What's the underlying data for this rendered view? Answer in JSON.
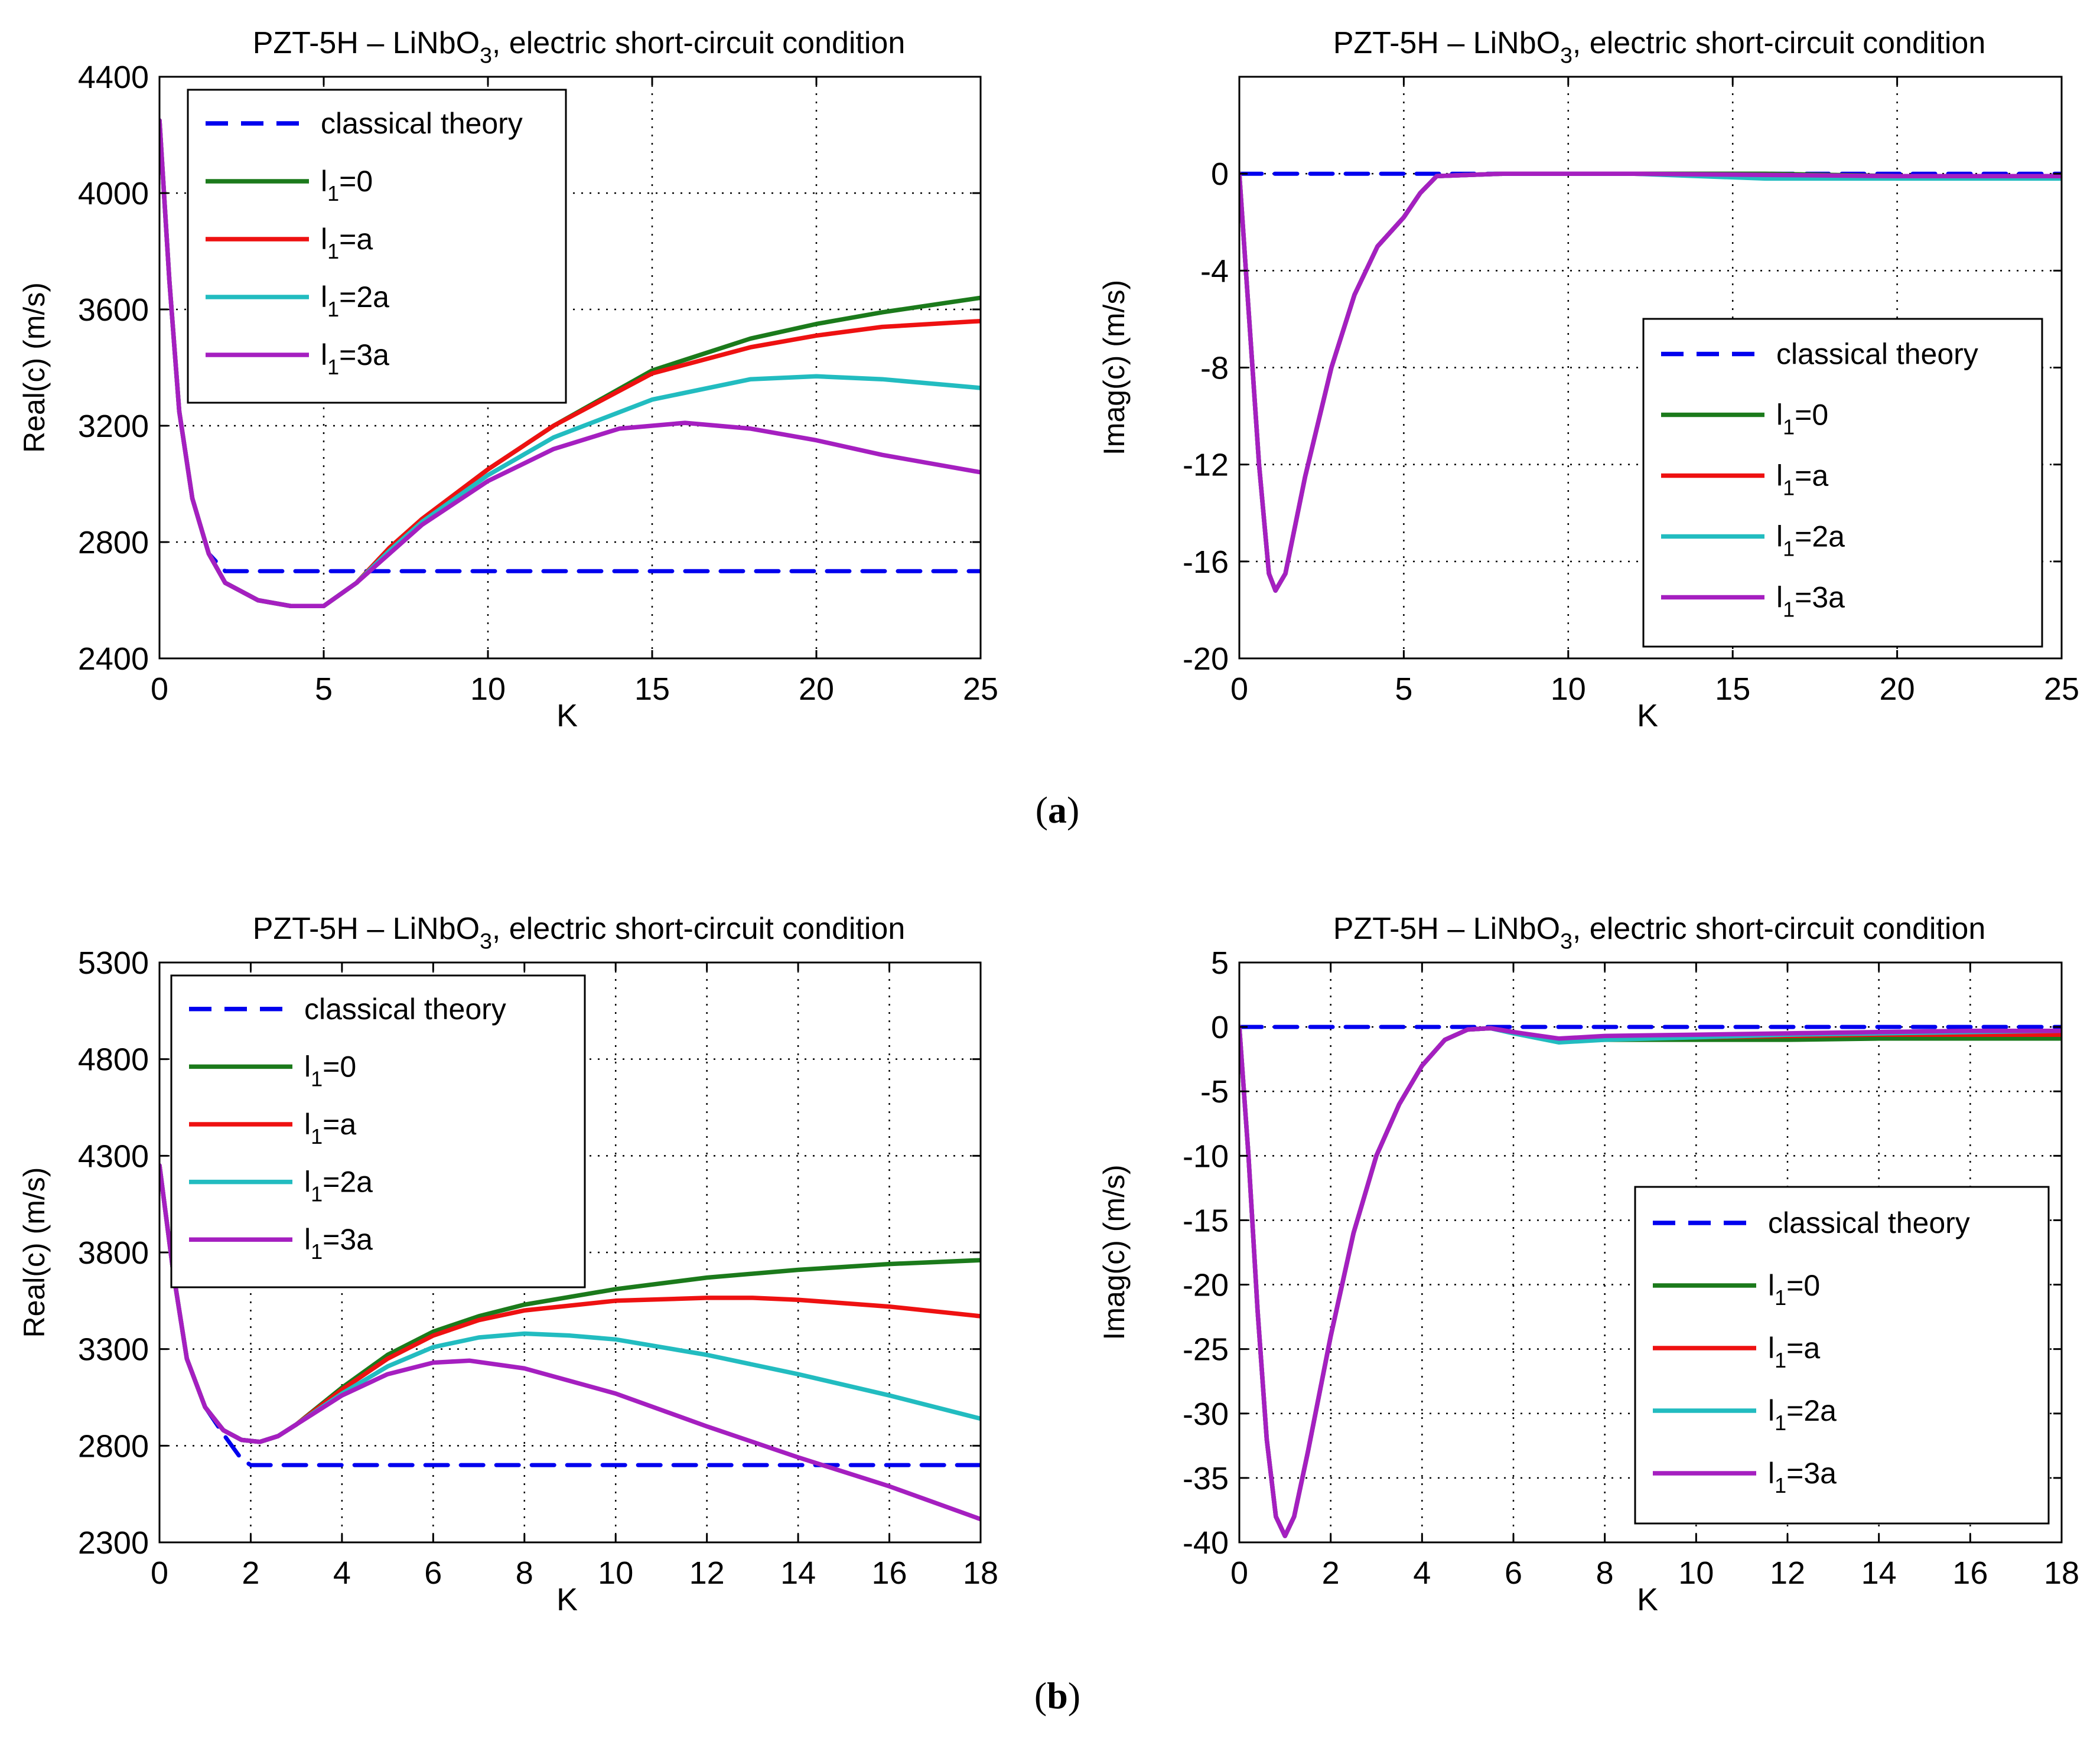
{
  "figure": {
    "panel_labels": [
      {
        "open": "(",
        "letter": "a",
        "close": ")"
      },
      {
        "open": "(",
        "letter": "b",
        "close": ")"
      }
    ],
    "colors": {
      "classical": "#0000ee",
      "l0": "#1b7a1b",
      "la": "#ee1111",
      "l2a": "#22bcc0",
      "l3a": "#a51fc0",
      "grid": "#000000"
    }
  },
  "chart_data": [
    {
      "type": "line",
      "title": {
        "main": "PZT-5H – LiNbO",
        "sub": "3",
        "rest": ", electric short-circuit condition"
      },
      "xlabel": "K",
      "ylabel": "Real(c) (m/s)",
      "xlim": [
        0,
        25
      ],
      "ylim": [
        2400,
        4400
      ],
      "xticks": [
        0,
        5,
        10,
        15,
        20,
        25
      ],
      "yticks": [
        2400,
        2800,
        3200,
        3600,
        4000,
        4400
      ],
      "grid": true,
      "legend_position": "top-left",
      "series": [
        {
          "name": "classical theory",
          "style": "dashed",
          "color_key": "classical",
          "x": [
            0,
            0.3,
            0.6,
            1.0,
            1.5,
            2.0,
            3,
            5,
            10,
            15,
            20,
            25
          ],
          "y": [
            4250,
            3700,
            3250,
            2950,
            2760,
            2700,
            2700,
            2700,
            2700,
            2700,
            2700,
            2700
          ]
        },
        {
          "name": "l1=0",
          "label": {
            "main": "l",
            "sub": "1",
            "rest": "=0"
          },
          "style": "solid",
          "color_key": "l0",
          "x": [
            0,
            0.3,
            0.6,
            1.0,
            1.5,
            2,
            3,
            4,
            5,
            6,
            7,
            8,
            10,
            12,
            15,
            18,
            20,
            22,
            25
          ],
          "y": [
            4250,
            3700,
            3250,
            2950,
            2760,
            2660,
            2600,
            2580,
            2580,
            2660,
            2780,
            2880,
            3050,
            3200,
            3390,
            3500,
            3550,
            3590,
            3640
          ]
        },
        {
          "name": "l1=a",
          "label": {
            "main": "l",
            "sub": "1",
            "rest": "=a"
          },
          "style": "solid",
          "color_key": "la",
          "x": [
            0,
            0.3,
            0.6,
            1.0,
            1.5,
            2,
            3,
            4,
            5,
            6,
            7,
            8,
            10,
            12,
            15,
            18,
            20,
            22,
            25
          ],
          "y": [
            4250,
            3700,
            3250,
            2950,
            2760,
            2660,
            2600,
            2580,
            2580,
            2660,
            2780,
            2880,
            3050,
            3200,
            3380,
            3470,
            3510,
            3540,
            3560
          ]
        },
        {
          "name": "l1=2a",
          "label": {
            "main": "l",
            "sub": "1",
            "rest": "=2a"
          },
          "style": "solid",
          "color_key": "l2a",
          "x": [
            0,
            0.3,
            0.6,
            1.0,
            1.5,
            2,
            3,
            4,
            5,
            6,
            7,
            8,
            10,
            12,
            15,
            18,
            20,
            22,
            25
          ],
          "y": [
            4250,
            3700,
            3250,
            2950,
            2760,
            2660,
            2600,
            2580,
            2580,
            2660,
            2770,
            2870,
            3030,
            3160,
            3290,
            3360,
            3370,
            3360,
            3330
          ]
        },
        {
          "name": "l1=3a",
          "label": {
            "main": "l",
            "sub": "1",
            "rest": "=3a"
          },
          "style": "solid",
          "color_key": "l3a",
          "x": [
            0,
            0.3,
            0.6,
            1.0,
            1.5,
            2,
            3,
            4,
            5,
            6,
            7,
            8,
            10,
            12,
            14,
            16,
            18,
            20,
            22,
            25
          ],
          "y": [
            4250,
            3700,
            3250,
            2950,
            2760,
            2660,
            2600,
            2580,
            2580,
            2660,
            2760,
            2860,
            3010,
            3120,
            3190,
            3210,
            3190,
            3150,
            3100,
            3040
          ]
        }
      ]
    },
    {
      "type": "line",
      "title": {
        "main": "PZT-5H – LiNbO",
        "sub": "3",
        "rest": ", electric short-circuit condition"
      },
      "xlabel": "K",
      "ylabel": "Imag(c) (m/s)",
      "xlim": [
        0,
        25
      ],
      "ylim": [
        -20,
        4
      ],
      "xticks": [
        0,
        5,
        10,
        15,
        20,
        25
      ],
      "yticks": [
        -20,
        -16,
        -12,
        -8,
        -4,
        0
      ],
      "grid": true,
      "legend_position": "bottom-right",
      "series": [
        {
          "name": "classical theory",
          "style": "dashed",
          "color_key": "classical",
          "x": [
            0,
            25
          ],
          "y": [
            0,
            0
          ]
        },
        {
          "name": "l1=0",
          "label": {
            "main": "l",
            "sub": "1",
            "rest": "=0"
          },
          "style": "solid",
          "color_key": "l0",
          "x": [
            0,
            0.3,
            0.6,
            0.9,
            1.1,
            1.4,
            2.0,
            2.8,
            3.5,
            4.2,
            5.0,
            5.5,
            6.0,
            8,
            12,
            16,
            20,
            25
          ],
          "y": [
            0,
            -6,
            -12,
            -16.5,
            -17.2,
            -16.5,
            -12.5,
            -8,
            -5,
            -3,
            -1.8,
            -0.8,
            -0.1,
            0,
            0,
            0,
            -0.1,
            -0.1
          ]
        },
        {
          "name": "l1=a",
          "label": {
            "main": "l",
            "sub": "1",
            "rest": "=a"
          },
          "style": "solid",
          "color_key": "la",
          "x": [
            0,
            0.3,
            0.6,
            0.9,
            1.1,
            1.4,
            2.0,
            2.8,
            3.5,
            4.2,
            5.0,
            5.5,
            6.0,
            8,
            12,
            16,
            20,
            25
          ],
          "y": [
            0,
            -6,
            -12,
            -16.5,
            -17.2,
            -16.5,
            -12.5,
            -8,
            -5,
            -3,
            -1.8,
            -0.8,
            -0.1,
            0,
            0,
            -0.1,
            -0.1,
            -0.15
          ]
        },
        {
          "name": "l1=2a",
          "label": {
            "main": "l",
            "sub": "1",
            "rest": "=2a"
          },
          "style": "solid",
          "color_key": "l2a",
          "x": [
            0,
            0.3,
            0.6,
            0.9,
            1.1,
            1.4,
            2.0,
            2.8,
            3.5,
            4.2,
            5.0,
            5.5,
            6.0,
            8,
            12,
            16,
            20,
            25
          ],
          "y": [
            0,
            -6,
            -12,
            -16.5,
            -17.2,
            -16.5,
            -12.5,
            -8,
            -5,
            -3,
            -1.8,
            -0.8,
            -0.1,
            0,
            0,
            -0.2,
            -0.2,
            -0.2
          ]
        },
        {
          "name": "l1=3a",
          "label": {
            "main": "l",
            "sub": "1",
            "rest": "=3a"
          },
          "style": "solid",
          "color_key": "l3a",
          "x": [
            0,
            0.3,
            0.6,
            0.9,
            1.1,
            1.4,
            2.0,
            2.8,
            3.5,
            4.2,
            5.0,
            5.5,
            6.0,
            8,
            12,
            16,
            20,
            25
          ],
          "y": [
            0,
            -6,
            -12,
            -16.5,
            -17.2,
            -16.5,
            -12.5,
            -8,
            -5,
            -3,
            -1.8,
            -0.8,
            -0.1,
            0,
            0,
            -0.05,
            -0.1,
            -0.1
          ]
        }
      ]
    },
    {
      "type": "line",
      "title": {
        "main": "PZT-5H – LiNbO",
        "sub": "3",
        "rest": ", electric short-circuit condition"
      },
      "xlabel": "K",
      "ylabel": "Real(c) (m/s)",
      "xlim": [
        0,
        18
      ],
      "ylim": [
        2300,
        5300
      ],
      "xticks": [
        0,
        2,
        4,
        6,
        8,
        10,
        12,
        14,
        16,
        18
      ],
      "yticks": [
        2300,
        2800,
        3300,
        3800,
        4300,
        4800,
        5300
      ],
      "grid": true,
      "legend_position": "top-left",
      "series": [
        {
          "name": "classical theory",
          "style": "dashed",
          "color_key": "classical",
          "x": [
            0,
            0.3,
            0.6,
            1.0,
            1.4,
            1.8,
            2.0,
            4,
            8,
            12,
            18
          ],
          "y": [
            4250,
            3700,
            3250,
            3000,
            2860,
            2730,
            2700,
            2700,
            2700,
            2700,
            2700
          ]
        },
        {
          "name": "l1=0",
          "label": {
            "main": "l",
            "sub": "1",
            "rest": "=0"
          },
          "style": "solid",
          "color_key": "l0",
          "x": [
            0,
            0.3,
            0.6,
            1.0,
            1.4,
            1.8,
            2.2,
            2.6,
            3,
            4,
            5,
            6,
            7,
            8,
            10,
            12,
            14,
            16,
            18
          ],
          "y": [
            4250,
            3700,
            3250,
            3000,
            2880,
            2830,
            2820,
            2850,
            2910,
            3100,
            3270,
            3390,
            3470,
            3530,
            3610,
            3670,
            3710,
            3740,
            3760
          ]
        },
        {
          "name": "l1=a",
          "label": {
            "main": "l",
            "sub": "1",
            "rest": "=a"
          },
          "style": "solid",
          "color_key": "la",
          "x": [
            0,
            0.3,
            0.6,
            1.0,
            1.4,
            1.8,
            2.2,
            2.6,
            3,
            4,
            5,
            6,
            7,
            8,
            10,
            12,
            13,
            14,
            16,
            18
          ],
          "y": [
            4250,
            3700,
            3250,
            3000,
            2880,
            2830,
            2820,
            2850,
            2910,
            3090,
            3250,
            3370,
            3450,
            3500,
            3550,
            3565,
            3565,
            3555,
            3520,
            3470
          ]
        },
        {
          "name": "l1=2a",
          "label": {
            "main": "l",
            "sub": "1",
            "rest": "=2a"
          },
          "style": "solid",
          "color_key": "l2a",
          "x": [
            0,
            0.3,
            0.6,
            1.0,
            1.4,
            1.8,
            2.2,
            2.6,
            3,
            4,
            5,
            6,
            7,
            8,
            9,
            10,
            12,
            14,
            16,
            18
          ],
          "y": [
            4250,
            3700,
            3250,
            3000,
            2880,
            2830,
            2820,
            2850,
            2910,
            3070,
            3210,
            3310,
            3360,
            3380,
            3370,
            3350,
            3270,
            3170,
            3060,
            2940
          ]
        },
        {
          "name": "l1=3a",
          "label": {
            "main": "l",
            "sub": "1",
            "rest": "=3a"
          },
          "style": "solid",
          "color_key": "l3a",
          "x": [
            0,
            0.3,
            0.6,
            1.0,
            1.4,
            1.8,
            2.2,
            2.6,
            3,
            4,
            5,
            6,
            6.8,
            8,
            10,
            12,
            14,
            16,
            18
          ],
          "y": [
            4250,
            3700,
            3250,
            3000,
            2880,
            2830,
            2820,
            2850,
            2910,
            3060,
            3170,
            3230,
            3240,
            3200,
            3070,
            2900,
            2740,
            2590,
            2420
          ]
        }
      ]
    },
    {
      "type": "line",
      "title": {
        "main": "PZT-5H – LiNbO",
        "sub": "3",
        "rest": ", electric short-circuit condition"
      },
      "xlabel": "K",
      "ylabel": "Imag(c) (m/s)",
      "xlim": [
        0,
        18
      ],
      "ylim": [
        -40,
        5
      ],
      "xticks": [
        0,
        2,
        4,
        6,
        8,
        10,
        12,
        14,
        16,
        18
      ],
      "yticks": [
        -40,
        -35,
        -30,
        -25,
        -20,
        -15,
        -10,
        -5,
        0,
        5
      ],
      "grid": true,
      "legend_position": "bottom-right",
      "series": [
        {
          "name": "classical theory",
          "style": "dashed",
          "color_key": "classical",
          "x": [
            0,
            18
          ],
          "y": [
            0,
            0
          ]
        },
        {
          "name": "l1=0",
          "label": {
            "main": "l",
            "sub": "1",
            "rest": "=0"
          },
          "style": "solid",
          "color_key": "l0",
          "x": [
            0,
            0.2,
            0.4,
            0.6,
            0.8,
            1.0,
            1.2,
            1.5,
            2.0,
            2.5,
            3.0,
            3.5,
            4.0,
            4.5,
            5.0,
            5.5,
            6.0,
            7.0,
            8,
            10,
            12,
            14,
            16,
            18
          ],
          "y": [
            0,
            -10,
            -22,
            -32,
            -38,
            -39.5,
            -38,
            -33,
            -24,
            -16,
            -10,
            -6,
            -3,
            -1,
            -0.2,
            -0.1,
            -0.4,
            -1.0,
            -1.0,
            -1.0,
            -1.0,
            -0.9,
            -0.9,
            -0.9
          ]
        },
        {
          "name": "l1=a",
          "label": {
            "main": "l",
            "sub": "1",
            "rest": "=a"
          },
          "style": "solid",
          "color_key": "la",
          "x": [
            0,
            0.2,
            0.4,
            0.6,
            0.8,
            1.0,
            1.2,
            1.5,
            2.0,
            2.5,
            3.0,
            3.5,
            4.0,
            4.5,
            5.0,
            5.5,
            6.0,
            7.0,
            8,
            10,
            12,
            14,
            16,
            18
          ],
          "y": [
            0,
            -10,
            -22,
            -32,
            -38,
            -39.5,
            -38,
            -33,
            -24,
            -16,
            -10,
            -6,
            -3,
            -1,
            -0.2,
            -0.1,
            -0.4,
            -1.0,
            -0.9,
            -0.8,
            -0.7,
            -0.6,
            -0.6,
            -0.6
          ]
        },
        {
          "name": "l1=2a",
          "label": {
            "main": "l",
            "sub": "1",
            "rest": "=2a"
          },
          "style": "solid",
          "color_key": "l2a",
          "x": [
            0,
            0.2,
            0.4,
            0.6,
            0.8,
            1.0,
            1.2,
            1.5,
            2.0,
            2.5,
            3.0,
            3.5,
            4.0,
            4.5,
            5.0,
            5.5,
            6.0,
            7.0,
            8,
            10,
            12,
            14,
            16,
            18
          ],
          "y": [
            0,
            -10,
            -22,
            -32,
            -38,
            -39.5,
            -38,
            -33,
            -24,
            -16,
            -10,
            -6,
            -3,
            -1,
            -0.2,
            -0.1,
            -0.5,
            -1.2,
            -1.0,
            -0.8,
            -0.6,
            -0.5,
            -0.4,
            -0.3
          ]
        },
        {
          "name": "l1=3a",
          "label": {
            "main": "l",
            "sub": "1",
            "rest": "=3a"
          },
          "style": "solid",
          "color_key": "l3a",
          "x": [
            0,
            0.2,
            0.4,
            0.6,
            0.8,
            1.0,
            1.2,
            1.5,
            2.0,
            2.5,
            3.0,
            3.5,
            4.0,
            4.5,
            5.0,
            5.5,
            6.0,
            7.0,
            8,
            10,
            12,
            14,
            16,
            18
          ],
          "y": [
            0,
            -10,
            -22,
            -32,
            -38,
            -39.5,
            -38,
            -33,
            -24,
            -16,
            -10,
            -6,
            -3,
            -1,
            -0.2,
            -0.1,
            -0.4,
            -0.9,
            -0.7,
            -0.6,
            -0.5,
            -0.4,
            -0.3,
            -0.3
          ]
        }
      ]
    }
  ]
}
